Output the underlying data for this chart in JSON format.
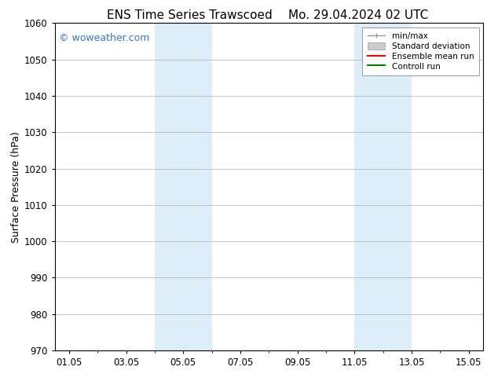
{
  "title_left": "ENS Time Series Trawscoed",
  "title_right": "Mo. 29.04.2024 02 UTC",
  "ylabel": "Surface Pressure (hPa)",
  "xlim": [
    0.5,
    15.5
  ],
  "ylim": [
    970,
    1060
  ],
  "yticks": [
    970,
    980,
    990,
    1000,
    1010,
    1020,
    1030,
    1040,
    1050,
    1060
  ],
  "xtick_labels": [
    "01.05",
    "03.05",
    "05.05",
    "07.05",
    "09.05",
    "11.05",
    "13.05",
    "15.05"
  ],
  "xtick_positions": [
    1.0,
    3.0,
    5.0,
    7.0,
    9.0,
    11.0,
    13.0,
    15.0
  ],
  "shaded_regions": [
    {
      "xmin": 4.0,
      "xmax": 6.0,
      "color": "#ddeef9"
    },
    {
      "xmin": 11.0,
      "xmax": 13.0,
      "color": "#ddeef9"
    }
  ],
  "watermark_text": "© woweather.com",
  "watermark_color": "#3377cc",
  "background_color": "#ffffff",
  "plot_bg_color": "#ffffff",
  "grid_color": "#bbbbbb",
  "legend_items": [
    {
      "label": "min/max",
      "color": "#999999",
      "lw": 1.0,
      "ls": "-",
      "type": "minmax"
    },
    {
      "label": "Standard deviation",
      "color": "#cccccc",
      "lw": 5,
      "ls": "-",
      "type": "band"
    },
    {
      "label": "Ensemble mean run",
      "color": "#ff0000",
      "lw": 1.5,
      "ls": "-",
      "type": "line"
    },
    {
      "label": "Controll run",
      "color": "#008000",
      "lw": 1.5,
      "ls": "-",
      "type": "line"
    }
  ],
  "title_fontsize": 11,
  "axis_fontsize": 9,
  "tick_fontsize": 8.5,
  "legend_fontsize": 7.5
}
